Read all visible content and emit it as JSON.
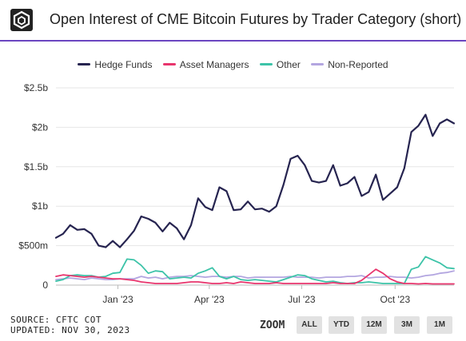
{
  "header": {
    "title": "Open Interest of CME Bitcoin Futures by Trader Category (short)",
    "logo_icon": "cube-logo-icon"
  },
  "legend": [
    {
      "label": "Hedge Funds",
      "color": "#262450"
    },
    {
      "label": "Asset Managers",
      "color": "#e8356d"
    },
    {
      "label": "Other",
      "color": "#3cc3a8"
    },
    {
      "label": "Non-Reported",
      "color": "#b3a6e0"
    }
  ],
  "footer": {
    "source": "SOURCE: CFTC COT",
    "updated": "UPDATED: NOV 30, 2023"
  },
  "zoom": {
    "label": "ZOOM",
    "buttons": [
      "ALL",
      "YTD",
      "12M",
      "3M",
      "1M"
    ]
  },
  "chart_data": {
    "type": "line",
    "title": "Open Interest of CME Bitcoin Futures by Trader Category (short)",
    "xlabel": "",
    "ylabel": "",
    "x": [
      "2022-11-01",
      "2022-11-08",
      "2022-11-15",
      "2022-11-22",
      "2022-11-29",
      "2022-12-06",
      "2022-12-13",
      "2022-12-20",
      "2022-12-27",
      "2023-01-03",
      "2023-01-10",
      "2023-01-17",
      "2023-01-24",
      "2023-01-31",
      "2023-02-07",
      "2023-02-14",
      "2023-02-21",
      "2023-02-28",
      "2023-03-07",
      "2023-03-14",
      "2023-03-21",
      "2023-03-28",
      "2023-04-04",
      "2023-04-11",
      "2023-04-18",
      "2023-04-25",
      "2023-05-02",
      "2023-05-09",
      "2023-05-16",
      "2023-05-23",
      "2023-05-30",
      "2023-06-06",
      "2023-06-13",
      "2023-06-20",
      "2023-06-27",
      "2023-07-04",
      "2023-07-11",
      "2023-07-18",
      "2023-07-25",
      "2023-08-01",
      "2023-08-08",
      "2023-08-15",
      "2023-08-22",
      "2023-08-29",
      "2023-09-05",
      "2023-09-12",
      "2023-09-19",
      "2023-09-26",
      "2023-10-03",
      "2023-10-10",
      "2023-10-17",
      "2023-10-24",
      "2023-10-31",
      "2023-11-07",
      "2023-11-14",
      "2023-11-21",
      "2023-11-28"
    ],
    "x_ticks": [
      "Jan '23",
      "Apr '23",
      "Jul '23",
      "Oct '23"
    ],
    "x_tick_dates": [
      "2023-01-01",
      "2023-04-01",
      "2023-07-01",
      "2023-10-01"
    ],
    "y_ticks": [
      "0",
      "$500m",
      "$1b",
      "$1.5b",
      "$2b",
      "$2.5b"
    ],
    "y_tick_values": [
      0,
      500,
      1000,
      1500,
      2000,
      2500
    ],
    "y_unit": "millions USD",
    "ylim": [
      0,
      2500
    ],
    "grid": "horizontal",
    "legend_position": "top-center",
    "series": [
      {
        "name": "Hedge Funds",
        "color": "#262450",
        "values": [
          600,
          650,
          760,
          700,
          710,
          650,
          500,
          480,
          560,
          480,
          580,
          690,
          870,
          840,
          790,
          680,
          790,
          720,
          580,
          760,
          1100,
          990,
          950,
          1240,
          1190,
          950,
          960,
          1060,
          960,
          970,
          930,
          1000,
          1270,
          1600,
          1640,
          1520,
          1320,
          1300,
          1320,
          1520,
          1260,
          1290,
          1370,
          1130,
          1180,
          1400,
          1080,
          1160,
          1240,
          1480,
          1940,
          2020,
          2160,
          1890,
          2050,
          2100,
          2050
        ]
      },
      {
        "name": "Asset Managers",
        "color": "#e8356d",
        "values": [
          110,
          130,
          120,
          110,
          100,
          110,
          100,
          90,
          80,
          80,
          70,
          60,
          40,
          30,
          20,
          20,
          20,
          20,
          30,
          40,
          40,
          30,
          20,
          20,
          30,
          20,
          40,
          30,
          20,
          20,
          20,
          30,
          20,
          20,
          20,
          20,
          20,
          20,
          20,
          30,
          20,
          20,
          20,
          60,
          130,
          200,
          150,
          80,
          40,
          20,
          20,
          15,
          20,
          15,
          15,
          15,
          15
        ]
      },
      {
        "name": "Other",
        "color": "#3cc3a8",
        "values": [
          50,
          70,
          120,
          130,
          120,
          120,
          100,
          110,
          150,
          160,
          330,
          320,
          250,
          150,
          180,
          170,
          80,
          90,
          100,
          90,
          150,
          180,
          220,
          110,
          80,
          110,
          70,
          60,
          70,
          60,
          50,
          40,
          70,
          100,
          130,
          120,
          80,
          60,
          40,
          50,
          30,
          20,
          30,
          30,
          40,
          30,
          20,
          20,
          20,
          20,
          200,
          230,
          360,
          320,
          280,
          220,
          210
        ]
      },
      {
        "name": "Non-Reported",
        "color": "#b3a6e0",
        "values": [
          70,
          80,
          90,
          80,
          70,
          90,
          80,
          70,
          70,
          80,
          80,
          80,
          110,
          90,
          100,
          80,
          100,
          110,
          110,
          120,
          110,
          100,
          110,
          110,
          100,
          110,
          110,
          90,
          100,
          100,
          100,
          100,
          100,
          110,
          100,
          100,
          100,
          90,
          100,
          100,
          100,
          110,
          110,
          120,
          90,
          100,
          100,
          110,
          100,
          100,
          90,
          100,
          120,
          130,
          150,
          160,
          180
        ]
      }
    ]
  }
}
